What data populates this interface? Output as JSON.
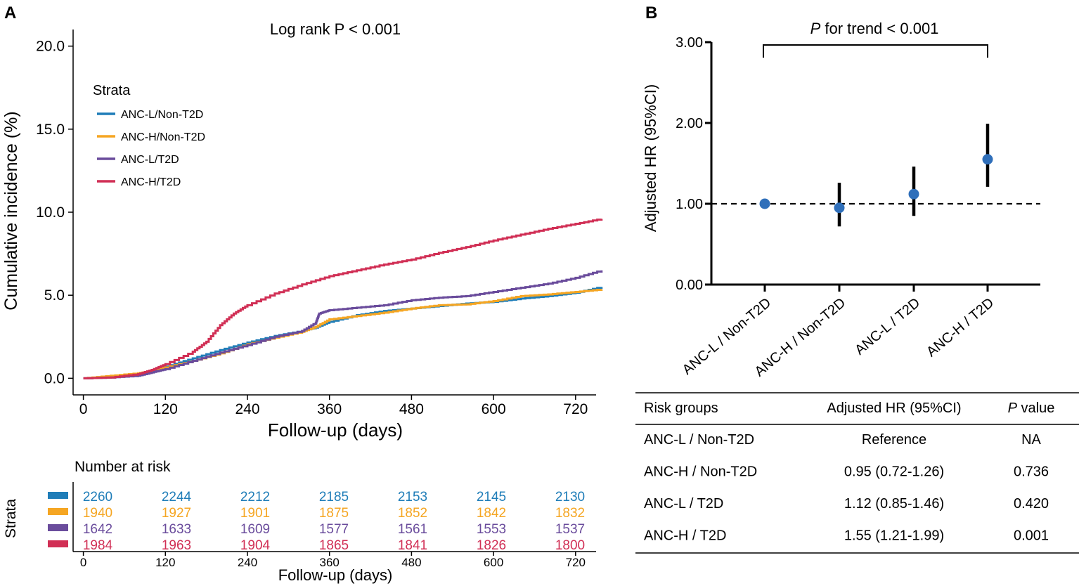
{
  "colors": {
    "anc_l_non_t2d": "#1f7db8",
    "anc_h_non_t2d": "#f5a623",
    "anc_l_t2d": "#6a4c9c",
    "anc_h_t2d": "#d12f55",
    "point": "#2f6fba",
    "axis": "#000000"
  },
  "panel_a": {
    "letter": "A",
    "annotation": "Log rank P < 0.001",
    "legend_title": "Strata",
    "risk_table": {
      "title": "Number at risk",
      "ylabel": "Strata",
      "xlabel": "Follow-up (days)",
      "x_ticks": [
        "0",
        "120",
        "240",
        "360",
        "480",
        "600",
        "720"
      ],
      "rows": [
        {
          "name": "ANC-L/Non-T2D",
          "color": "#1f7db8",
          "values": [
            "2260",
            "2244",
            "2212",
            "2185",
            "2153",
            "2145",
            "2130"
          ]
        },
        {
          "name": "ANC-H/Non-T2D",
          "color": "#f5a623",
          "values": [
            "1940",
            "1927",
            "1901",
            "1875",
            "1852",
            "1842",
            "1832"
          ]
        },
        {
          "name": "ANC-L/T2D",
          "color": "#6a4c9c",
          "values": [
            "1642",
            "1633",
            "1609",
            "1577",
            "1561",
            "1553",
            "1537"
          ]
        },
        {
          "name": "ANC-H/T2D",
          "color": "#d12f55",
          "values": [
            "1984",
            "1963",
            "1904",
            "1865",
            "1841",
            "1826",
            "1800"
          ]
        }
      ]
    }
  },
  "panel_b": {
    "letter": "B",
    "trend_label_italic": "P",
    "trend_label_rest": " for trend < 0.001",
    "table": {
      "headers": [
        "Risk groups",
        "Adjusted HR (95%CI)",
        "P value"
      ],
      "header_p_italic": "P",
      "header_p_rest": " value",
      "rows": [
        {
          "group": "ANC-L / Non-T2D",
          "hr": "Reference",
          "p": "NA"
        },
        {
          "group": "ANC-H / Non-T2D",
          "hr": "0.95 (0.72-1.26)",
          "p": "0.736"
        },
        {
          "group": "ANC-L / T2D",
          "hr": "1.12 (0.85-1.46)",
          "p": "0.420"
        },
        {
          "group": "ANC-H / T2D",
          "hr": "1.55 (1.21-1.99)",
          "p": "0.001"
        }
      ]
    }
  },
  "chart_data": [
    {
      "type": "line",
      "title": "",
      "xlabel": "Follow-up (days)",
      "ylabel": "Cumulative incidence (%)",
      "xlim": [
        -15,
        750
      ],
      "ylim": [
        -1,
        21
      ],
      "x_ticks": [
        0,
        120,
        240,
        360,
        480,
        600,
        720
      ],
      "x_tick_labels": [
        "0",
        "120",
        "240",
        "360",
        "480",
        "600",
        "720"
      ],
      "y_ticks": [
        0,
        5,
        10,
        15,
        20
      ],
      "y_tick_labels": [
        "0.0",
        "5.0",
        "10.0",
        "15.0",
        "20.0"
      ],
      "legend_position": "top-left",
      "series": [
        {
          "name": "ANC-L/Non-T2D",
          "color": "#1f7db8",
          "x": [
            0,
            40,
            80,
            100,
            120,
            160,
            200,
            240,
            280,
            320,
            340,
            360,
            400,
            440,
            480,
            520,
            560,
            600,
            640,
            680,
            720,
            758
          ],
          "y": [
            0,
            0.05,
            0.2,
            0.45,
            0.7,
            1.2,
            1.7,
            2.15,
            2.55,
            2.85,
            3.05,
            3.4,
            3.8,
            4.05,
            4.2,
            4.35,
            4.5,
            4.6,
            4.8,
            4.95,
            5.15,
            5.5
          ]
        },
        {
          "name": "ANC-H/Non-T2D",
          "color": "#f5a623",
          "x": [
            0,
            40,
            80,
            100,
            120,
            160,
            200,
            240,
            280,
            320,
            340,
            360,
            400,
            440,
            480,
            520,
            560,
            600,
            640,
            680,
            720,
            758
          ],
          "y": [
            0,
            0.15,
            0.3,
            0.45,
            0.65,
            1.05,
            1.5,
            2.05,
            2.45,
            2.8,
            3.1,
            3.55,
            3.75,
            3.95,
            4.2,
            4.4,
            4.45,
            4.65,
            4.95,
            5.05,
            5.2,
            5.35
          ]
        },
        {
          "name": "ANC-L/T2D",
          "color": "#6a4c9c",
          "x": [
            0,
            40,
            80,
            100,
            120,
            160,
            200,
            240,
            280,
            320,
            340,
            345,
            360,
            400,
            440,
            480,
            520,
            560,
            600,
            640,
            680,
            720,
            758
          ],
          "y": [
            0,
            0.05,
            0.15,
            0.35,
            0.55,
            1.05,
            1.55,
            2.0,
            2.5,
            2.85,
            3.35,
            3.9,
            4.1,
            4.25,
            4.4,
            4.7,
            4.85,
            4.95,
            5.2,
            5.45,
            5.7,
            6.05,
            6.5
          ]
        },
        {
          "name": "ANC-H/T2D",
          "color": "#d12f55",
          "x": [
            0,
            40,
            80,
            100,
            120,
            160,
            180,
            200,
            220,
            240,
            280,
            320,
            360,
            400,
            440,
            480,
            520,
            560,
            600,
            640,
            680,
            720,
            758
          ],
          "y": [
            0,
            0.05,
            0.25,
            0.5,
            0.85,
            1.6,
            2.2,
            3.2,
            3.9,
            4.4,
            5.1,
            5.65,
            6.15,
            6.5,
            6.85,
            7.15,
            7.55,
            7.9,
            8.3,
            8.65,
            9.0,
            9.3,
            9.6
          ]
        }
      ]
    },
    {
      "type": "scatter",
      "title": "",
      "xlabel": "",
      "ylabel": "Adjusted HR (95%CI)",
      "ylim": [
        0,
        3
      ],
      "y_ticks": [
        0,
        1,
        2,
        3
      ],
      "y_tick_labels": [
        "0.00",
        "1.00",
        "2.00",
        "3.00"
      ],
      "reference_line": 1.0,
      "categories": [
        "ANC-L / Non-T2D",
        "ANC-H / Non-T2D",
        "ANC-L / T2D",
        "ANC-H / T2D"
      ],
      "values": [
        1.0,
        0.95,
        1.12,
        1.55
      ],
      "lower": [
        1.0,
        0.72,
        0.85,
        1.21
      ],
      "upper": [
        1.0,
        1.26,
        1.46,
        1.99
      ],
      "annotation": "P for trend < 0.001"
    }
  ]
}
